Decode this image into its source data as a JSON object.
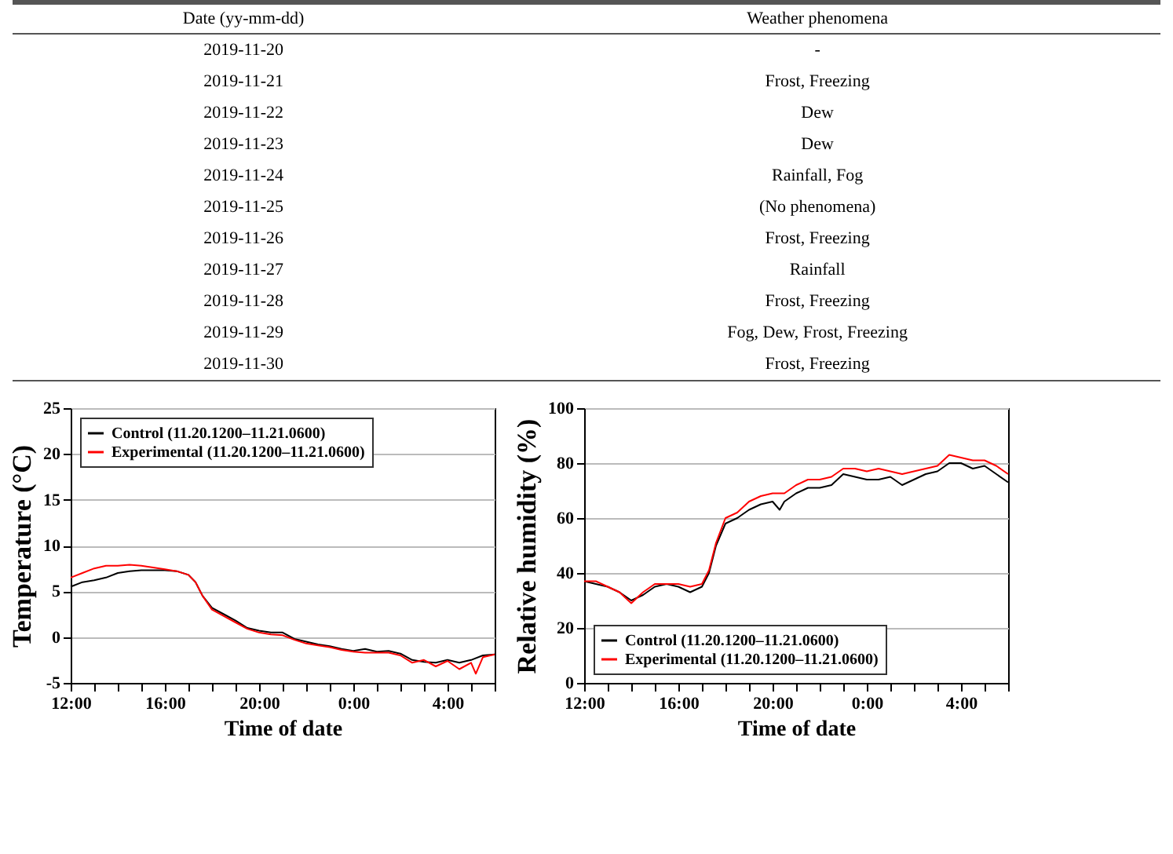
{
  "chart_data": [
    {
      "type": "other",
      "annotations": [
        "Date (yy-mm-dd)",
        "Weather phenomena",
        "2019-11-20",
        "-",
        "2019-11-21",
        "Frost, Freezing",
        "2019-11-22",
        "Dew",
        "2019-11-23",
        "Dew",
        "2019-11-24",
        "Rainfall, Fog",
        "2019-11-25",
        "(No phenomena)",
        "2019-11-26",
        "Frost, Freezing",
        "2019-11-27",
        "Rainfall",
        "2019-11-28",
        "Frost, Freezing",
        "2019-11-29",
        "Fog, Dew, Frost, Freezing",
        "2019-11-30",
        "Frost, Freezing"
      ]
    },
    {
      "type": "line",
      "xlabel": "Time of date",
      "ylabel": "Temperature (°C)",
      "xlim": [
        "2019-11-20T12:00",
        "2019-11-21T06:00"
      ],
      "ylim": [
        -5,
        25
      ],
      "yticks": [
        -5,
        0,
        5,
        10,
        15,
        20,
        25
      ],
      "xticks": [
        {
          "value": "2019-11-20T12:00",
          "label": "12:00"
        },
        {
          "value": "2019-11-20T13:00",
          "label": null
        },
        {
          "value": "2019-11-20T14:00",
          "label": null
        },
        {
          "value": "2019-11-20T15:00",
          "label": null
        },
        {
          "value": "2019-11-20T16:00",
          "label": "16:00"
        },
        {
          "value": "2019-11-20T17:00",
          "label": null
        },
        {
          "value": "2019-11-20T18:00",
          "label": null
        },
        {
          "value": "2019-11-20T19:00",
          "label": null
        },
        {
          "value": "2019-11-20T20:00",
          "label": "20:00"
        },
        {
          "value": "2019-11-20T21:00",
          "label": null
        },
        {
          "value": "2019-11-20T22:00",
          "label": null
        },
        {
          "value": "2019-11-20T23:00",
          "label": null
        },
        {
          "value": "2019-11-21T00:00",
          "label": "0:00"
        },
        {
          "value": "2019-11-21T01:00",
          "label": null
        },
        {
          "value": "2019-11-21T02:00",
          "label": null
        },
        {
          "value": "2019-11-21T03:00",
          "label": null
        },
        {
          "value": "2019-11-21T04:00",
          "label": "4:00"
        },
        {
          "value": "2019-11-21T05:00",
          "label": null
        },
        {
          "value": "2019-11-21T06:00",
          "label": null
        }
      ],
      "grid": "y",
      "legend": "top left",
      "series": [
        {
          "name": "Control (11.20.1200–11.21.0600)",
          "color": "#000000",
          "x": [
            "2019-11-20T12:00",
            "2019-11-20T12:30",
            "2019-11-20T13:00",
            "2019-11-20T13:30",
            "2019-11-20T14:00",
            "2019-11-20T14:30",
            "2019-11-20T15:00",
            "2019-11-20T15:30",
            "2019-11-20T16:00",
            "2019-11-20T16:30",
            "2019-11-20T17:00",
            "2019-11-20T17:18",
            "2019-11-20T17:36",
            "2019-11-20T18:00",
            "2019-11-20T18:30",
            "2019-11-20T19:00",
            "2019-11-20T19:30",
            "2019-11-20T20:00",
            "2019-11-20T20:30",
            "2019-11-20T21:00",
            "2019-11-20T21:30",
            "2019-11-20T22:00",
            "2019-11-20T22:30",
            "2019-11-20T23:00",
            "2019-11-20T23:30",
            "2019-11-21T00:00",
            "2019-11-21T00:30",
            "2019-11-21T01:00",
            "2019-11-21T01:30",
            "2019-11-21T02:00",
            "2019-11-21T02:30",
            "2019-11-21T03:00",
            "2019-11-21T03:30",
            "2019-11-21T04:00",
            "2019-11-21T04:30",
            "2019-11-21T05:00",
            "2019-11-21T05:30",
            "2019-11-21T06:00"
          ],
          "values": [
            5.5,
            6.0,
            6.2,
            6.5,
            7.0,
            7.2,
            7.3,
            7.3,
            7.3,
            7.2,
            6.8,
            6.0,
            4.5,
            3.2,
            2.5,
            1.8,
            1.0,
            0.7,
            0.5,
            0.5,
            -0.2,
            -0.5,
            -0.8,
            -1.0,
            -1.3,
            -1.5,
            -1.3,
            -1.6,
            -1.5,
            -1.8,
            -2.5,
            -2.7,
            -2.8,
            -2.5,
            -2.8,
            -2.5,
            -2,
            -1.9
          ]
        },
        {
          "name": "Experimental (11.20.1200–11.21.0600)",
          "color": "#ff0000",
          "x": [
            "2019-11-20T12:00",
            "2019-11-20T12:30",
            "2019-11-20T13:00",
            "2019-11-20T13:30",
            "2019-11-20T14:00",
            "2019-11-20T14:30",
            "2019-11-20T15:00",
            "2019-11-20T15:30",
            "2019-11-20T16:00",
            "2019-11-20T16:30",
            "2019-11-20T17:00",
            "2019-11-20T17:18",
            "2019-11-20T17:36",
            "2019-11-20T18:00",
            "2019-11-20T18:30",
            "2019-11-20T19:00",
            "2019-11-20T19:30",
            "2019-11-20T20:00",
            "2019-11-20T20:30",
            "2019-11-20T21:00",
            "2019-11-20T21:30",
            "2019-11-20T22:00",
            "2019-11-20T22:30",
            "2019-11-20T23:00",
            "2019-11-20T23:30",
            "2019-11-21T00:00",
            "2019-11-21T00:30",
            "2019-11-21T01:00",
            "2019-11-21T01:30",
            "2019-11-21T02:00",
            "2019-11-21T02:30",
            "2019-11-21T03:00",
            "2019-11-21T03:30",
            "2019-11-21T04:00",
            "2019-11-21T04:30",
            "2019-11-21T05:00",
            "2019-11-21T05:12",
            "2019-11-21T05:30",
            "2019-11-21T06:00"
          ],
          "values": [
            6.5,
            7.0,
            7.5,
            7.8,
            7.8,
            7.9,
            7.8,
            7.6,
            7.4,
            7.2,
            6.8,
            6.0,
            4.5,
            3.0,
            2.3,
            1.6,
            0.9,
            0.5,
            0.3,
            0.2,
            -0.3,
            -0.7,
            -0.9,
            -1.1,
            -1.4,
            -1.6,
            -1.7,
            -1.7,
            -1.7,
            -2.0,
            -2.8,
            -2.5,
            -3.2,
            -2.6,
            -3.5,
            -2.8,
            -4.0,
            -2.2,
            -1.9
          ]
        }
      ]
    },
    {
      "type": "line",
      "xlabel": "Time of date",
      "ylabel": "Relative humidity (%)",
      "xlim": [
        "2019-11-20T12:00",
        "2019-11-21T06:00"
      ],
      "ylim": [
        0,
        100
      ],
      "yticks": [
        0,
        20,
        40,
        60,
        80,
        100
      ],
      "xticks": [
        {
          "value": "2019-11-20T12:00",
          "label": "12:00"
        },
        {
          "value": "2019-11-20T13:00",
          "label": null
        },
        {
          "value": "2019-11-20T14:00",
          "label": null
        },
        {
          "value": "2019-11-20T15:00",
          "label": null
        },
        {
          "value": "2019-11-20T16:00",
          "label": "16:00"
        },
        {
          "value": "2019-11-20T17:00",
          "label": null
        },
        {
          "value": "2019-11-20T18:00",
          "label": null
        },
        {
          "value": "2019-11-20T19:00",
          "label": null
        },
        {
          "value": "2019-11-20T20:00",
          "label": "20:00"
        },
        {
          "value": "2019-11-20T21:00",
          "label": null
        },
        {
          "value": "2019-11-20T22:00",
          "label": null
        },
        {
          "value": "2019-11-20T23:00",
          "label": null
        },
        {
          "value": "2019-11-21T00:00",
          "label": "0:00"
        },
        {
          "value": "2019-11-21T01:00",
          "label": null
        },
        {
          "value": "2019-11-21T02:00",
          "label": null
        },
        {
          "value": "2019-11-21T03:00",
          "label": null
        },
        {
          "value": "2019-11-21T04:00",
          "label": "4:00"
        },
        {
          "value": "2019-11-21T05:00",
          "label": null
        },
        {
          "value": "2019-11-21T06:00",
          "label": null
        }
      ],
      "grid": "y",
      "legend": "bottom left",
      "series": [
        {
          "name": "Control (11.20.1200–11.21.0600)",
          "color": "#000000",
          "x": [
            "2019-11-20T12:00",
            "2019-11-20T12:30",
            "2019-11-20T13:00",
            "2019-11-20T13:30",
            "2019-11-20T14:00",
            "2019-11-20T14:30",
            "2019-11-20T15:00",
            "2019-11-20T15:30",
            "2019-11-20T16:00",
            "2019-11-20T16:30",
            "2019-11-20T17:00",
            "2019-11-20T17:18",
            "2019-11-20T17:36",
            "2019-11-20T18:00",
            "2019-11-20T18:30",
            "2019-11-20T19:00",
            "2019-11-20T19:30",
            "2019-11-20T20:00",
            "2019-11-20T20:18",
            "2019-11-20T20:30",
            "2019-11-20T21:00",
            "2019-11-20T21:30",
            "2019-11-20T22:00",
            "2019-11-20T22:30",
            "2019-11-20T23:00",
            "2019-11-20T23:30",
            "2019-11-21T00:00",
            "2019-11-21T00:30",
            "2019-11-21T01:00",
            "2019-11-21T01:30",
            "2019-11-21T02:00",
            "2019-11-21T02:30",
            "2019-11-21T03:00",
            "2019-11-21T03:30",
            "2019-11-21T04:00",
            "2019-11-21T04:30",
            "2019-11-21T05:00",
            "2019-11-21T05:30",
            "2019-11-21T06:00"
          ],
          "values": [
            37,
            36,
            35,
            33,
            30,
            32,
            35,
            36,
            35,
            33,
            35,
            40,
            50,
            58,
            60,
            63,
            65,
            66,
            63,
            66,
            69,
            71,
            71,
            72,
            76,
            75,
            74,
            74,
            75,
            72,
            74,
            76,
            77,
            80,
            80,
            78,
            79,
            76,
            73
          ]
        },
        {
          "name": "Experimental (11.20.1200–11.21.0600)",
          "color": "#ff0000",
          "x": [
            "2019-11-20T12:00",
            "2019-11-20T12:30",
            "2019-11-20T13:00",
            "2019-11-20T13:30",
            "2019-11-20T14:00",
            "2019-11-20T14:30",
            "2019-11-20T15:00",
            "2019-11-20T15:30",
            "2019-11-20T16:00",
            "2019-11-20T16:30",
            "2019-11-20T17:00",
            "2019-11-20T17:18",
            "2019-11-20T17:36",
            "2019-11-20T18:00",
            "2019-11-20T18:30",
            "2019-11-20T19:00",
            "2019-11-20T19:30",
            "2019-11-20T20:00",
            "2019-11-20T20:30",
            "2019-11-20T21:00",
            "2019-11-20T21:30",
            "2019-11-20T22:00",
            "2019-11-20T22:30",
            "2019-11-20T23:00",
            "2019-11-20T23:30",
            "2019-11-21T00:00",
            "2019-11-21T00:30",
            "2019-11-21T01:00",
            "2019-11-21T01:30",
            "2019-11-21T02:00",
            "2019-11-21T02:30",
            "2019-11-21T03:00",
            "2019-11-21T03:30",
            "2019-11-21T04:00",
            "2019-11-21T04:30",
            "2019-11-21T05:00",
            "2019-11-21T05:30",
            "2019-11-21T06:00"
          ],
          "values": [
            37,
            37,
            35,
            33,
            29,
            33,
            36,
            36,
            36,
            35,
            36,
            41,
            51,
            60,
            62,
            66,
            68,
            69,
            69,
            72,
            74,
            74,
            75,
            78,
            78,
            77,
            78,
            77,
            76,
            77,
            78,
            79,
            83,
            82,
            81,
            81,
            79,
            76
          ]
        }
      ]
    }
  ]
}
